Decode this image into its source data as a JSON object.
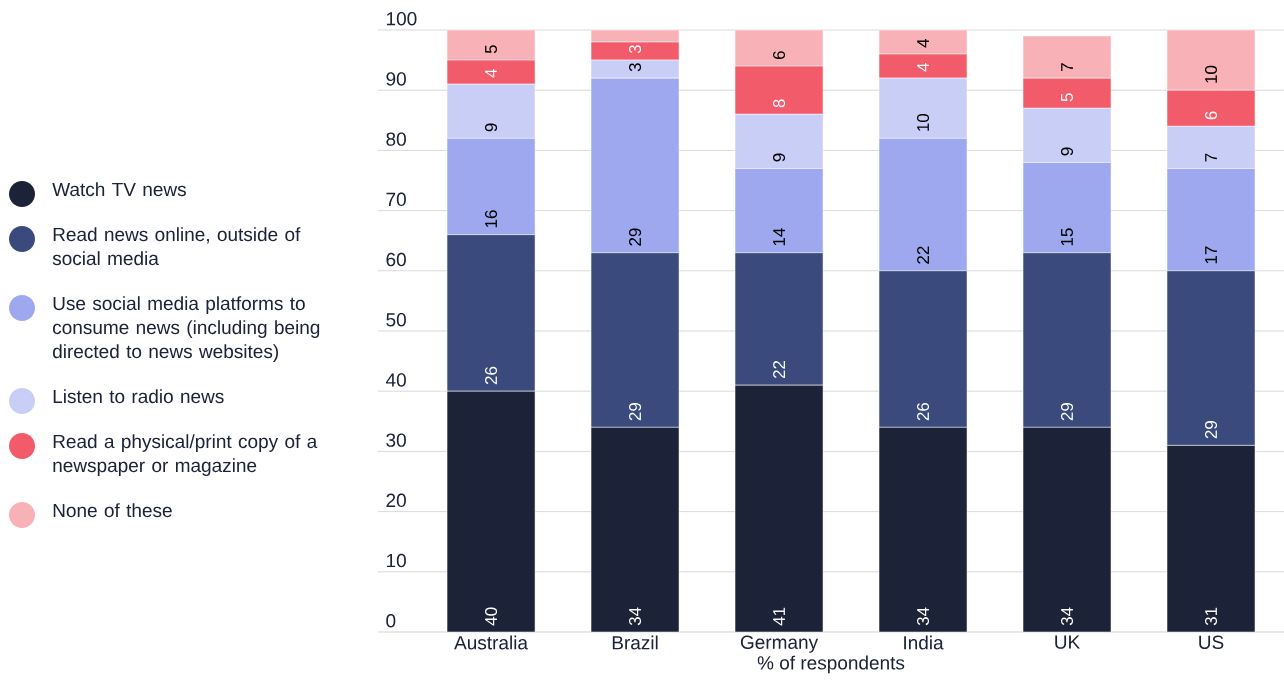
{
  "chart_data": {
    "type": "bar",
    "stacked": true,
    "xlabel": "% of respondents",
    "categories": [
      "Australia",
      "Brazil",
      "Germany",
      "India",
      "UK",
      "US"
    ],
    "ylim": [
      0,
      100
    ],
    "yticks": [
      0,
      10,
      20,
      30,
      40,
      50,
      60,
      70,
      80,
      90,
      100
    ],
    "grid": "y",
    "legend": "left",
    "series": [
      {
        "name": "Watch TV news",
        "color": "#1c2238",
        "values": [
          40,
          34,
          41,
          34,
          34,
          31
        ],
        "value_labels": [
          "40",
          "34",
          "41",
          "34",
          "34",
          "31"
        ]
      },
      {
        "name": "Read news online, outside of social media",
        "color": "#3b4a7c",
        "values": [
          26,
          29,
          22,
          26,
          29,
          29
        ],
        "value_labels": [
          "26",
          "29",
          "22",
          "26",
          "29",
          "29"
        ]
      },
      {
        "name": "Use social media platforms to consume news (including being directed to news websites)",
        "color": "#9da8ee",
        "values": [
          16,
          29,
          14,
          22,
          15,
          17
        ],
        "value_labels": [
          "16",
          "29",
          "14",
          "22",
          "15",
          "17"
        ]
      },
      {
        "name": "Listen to radio news",
        "color": "#c8cef5",
        "values": [
          9,
          3,
          9,
          10,
          9,
          7
        ],
        "value_labels": [
          "9",
          "3",
          "9",
          "10",
          "9",
          "7"
        ]
      },
      {
        "name": "Read a physical/print copy of a newspaper or magazine",
        "color": "#f25b6a",
        "values": [
          4,
          3,
          8,
          4,
          5,
          6
        ],
        "value_labels": [
          "4",
          "3",
          "8",
          "4",
          "5",
          "6"
        ]
      },
      {
        "name": "None of these",
        "color": "#f9b1b8",
        "values": [
          5,
          2,
          6,
          4,
          7,
          10
        ],
        "value_labels": [
          "5",
          null,
          "6",
          "4",
          "7",
          "10"
        ]
      }
    ]
  }
}
